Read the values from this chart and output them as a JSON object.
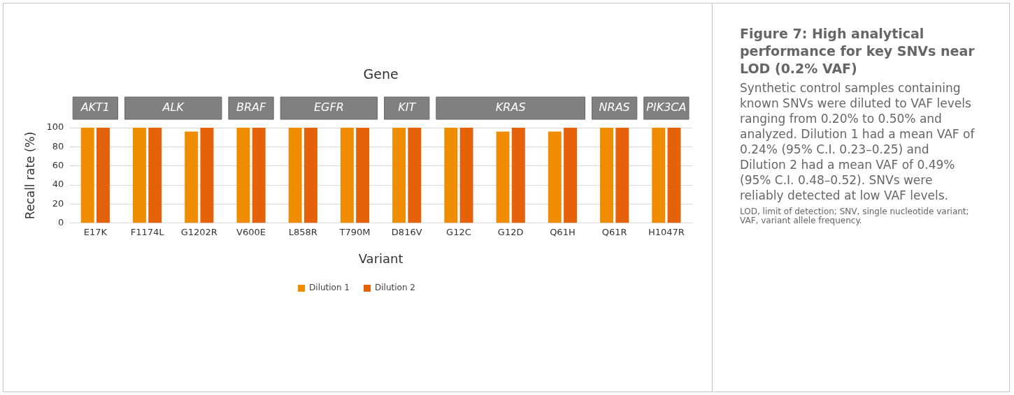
{
  "chart_data": {
    "type": "bar",
    "title": "Figure 7: High analytical performance for key SNVs near LOD (0.2% VAF)",
    "subtitle": "Synthetic control samples containing known SNVs were diluted to VAF levels ranging from 0.20% to 0.50% and analyzed. Dilution 1 had a mean VAF of 0.24% (95% C.I. 0.23–0.25) and Dilution 2 had a mean VAF of 0.49% (95% C.I. 0.48–0.52). SNVs were reliably detected at low VAF levels.",
    "xlabel": "Variant",
    "ylabel": "Recall rate (%)",
    "categories": [
      "E17K",
      "F1174L",
      "G1202R",
      "V600E",
      "L858R",
      "T790M",
      "D816V",
      "G12C",
      "G12D",
      "Q61H",
      "Q61R",
      "H1047R"
    ],
    "series": [
      {
        "name": "Dilution 1",
        "color": "#f08c00",
        "values": [
          100,
          100,
          96,
          100,
          100,
          100,
          100,
          100,
          96,
          96,
          100,
          100
        ]
      },
      {
        "name": "Dilution 2",
        "color": "#e5620a",
        "values": [
          100,
          100,
          100,
          100,
          100,
          100,
          100,
          100,
          100,
          100,
          100,
          100
        ]
      }
    ],
    "ylim": [
      0,
      100
    ],
    "yticks": [
      0,
      20,
      40,
      60,
      80,
      100
    ],
    "grid": "y",
    "legend": "bottom",
    "annotations": [
      "Gene",
      "AKT1",
      "ALK",
      "BRAF",
      "EGFR",
      "KIT",
      "KRAS",
      "NRAS",
      "PIK3CA",
      "LOD, limit of detection; SNV, single nucleotide variant; VAF, variant allele frequency."
    ]
  }
}
